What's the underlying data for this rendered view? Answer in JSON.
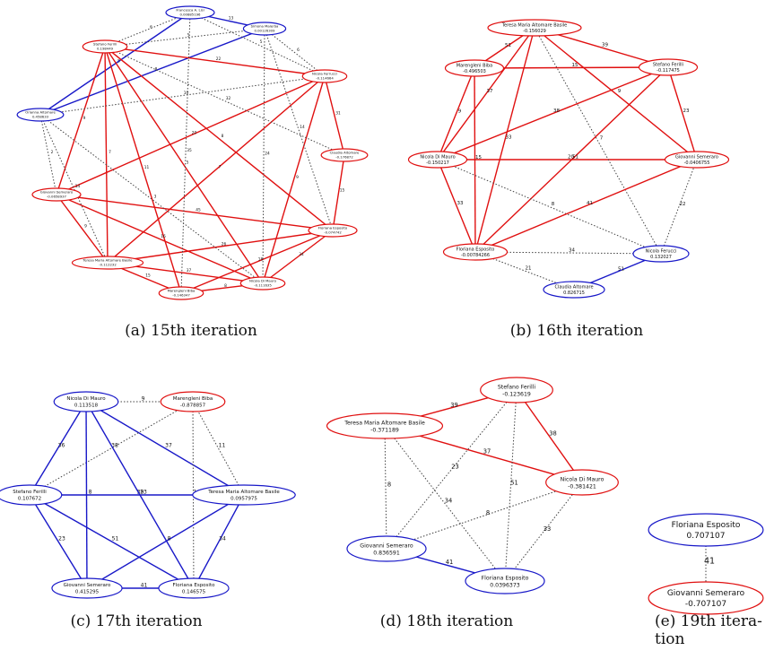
{
  "panels": [
    {
      "caption": "(a) 15th iteration",
      "nodes": [
        {
          "label": "Francesca A. Lisi",
          "value": "0.00885196",
          "color": "blue"
        },
        {
          "label": "Simona Malerba",
          "value": "0.00126309",
          "color": "blue"
        },
        {
          "label": "Stefano Ferilli",
          "value": "0.198449",
          "color": "red"
        },
        {
          "label": "Nicola Ferrucci",
          "value": "-0.114664",
          "color": "red"
        },
        {
          "label": "Orianna Altomare",
          "value": "0.458633",
          "color": "blue"
        },
        {
          "label": "Claudia Altomare",
          "value": "-0.176872",
          "color": "red"
        },
        {
          "label": "Giovanni Semeraro",
          "value": "-0.0658937",
          "color": "red"
        },
        {
          "label": "Floriana Esposito",
          "value": "-0.074742",
          "color": "red"
        },
        {
          "label": "Teresa Maria Altomare Basile",
          "value": "-0.112232",
          "color": "red"
        },
        {
          "label": "Marengleni Biba",
          "value": "-0.146347",
          "color": "red"
        },
        {
          "label": "Nicola Di Mauro",
          "value": "-0.111635",
          "color": "red"
        }
      ],
      "edges": [
        {
          "from": 0,
          "to": 1,
          "weight": "13",
          "kind": "blue"
        },
        {
          "from": 0,
          "to": 4,
          "weight": "5",
          "kind": "blue"
        },
        {
          "from": 1,
          "to": 4,
          "weight": "8",
          "kind": "blue"
        },
        {
          "from": 2,
          "to": 6,
          "weight": "9",
          "kind": "red"
        },
        {
          "from": 2,
          "to": 8,
          "weight": "7",
          "kind": "red"
        },
        {
          "from": 2,
          "to": 9,
          "weight": "11",
          "kind": "red"
        },
        {
          "from": 2,
          "to": 10,
          "weight": "5",
          "kind": "red"
        },
        {
          "from": 2,
          "to": 7,
          "weight": "8",
          "kind": "red"
        },
        {
          "from": 2,
          "to": 3,
          "weight": "22",
          "kind": "red"
        },
        {
          "from": 3,
          "to": 5,
          "weight": "31",
          "kind": "red"
        },
        {
          "from": 3,
          "to": 6,
          "weight": "20",
          "kind": "red"
        },
        {
          "from": 3,
          "to": 8,
          "weight": "7",
          "kind": "red"
        },
        {
          "from": 5,
          "to": 7,
          "weight": "15",
          "kind": "red"
        },
        {
          "from": 6,
          "to": 7,
          "weight": "45",
          "kind": "red"
        },
        {
          "from": 6,
          "to": 8,
          "weight": "9",
          "kind": "red"
        },
        {
          "from": 6,
          "to": 10,
          "weight": "16",
          "kind": "red"
        },
        {
          "from": 7,
          "to": 8,
          "weight": "26",
          "kind": "red"
        },
        {
          "from": 7,
          "to": 10,
          "weight": "34",
          "kind": "red"
        },
        {
          "from": 8,
          "to": 9,
          "weight": "15",
          "kind": "red"
        },
        {
          "from": 8,
          "to": 10,
          "weight": "37",
          "kind": "red"
        },
        {
          "from": 9,
          "to": 10,
          "weight": "8",
          "kind": "red"
        },
        {
          "from": 3,
          "to": 10,
          "weight": "9",
          "kind": "red"
        },
        {
          "from": 9,
          "to": 7,
          "weight": "18",
          "kind": "red"
        },
        {
          "from": 0,
          "to": 2,
          "weight": "6",
          "kind": "dotted"
        },
        {
          "from": 0,
          "to": 3,
          "weight": "5",
          "kind": "dotted"
        },
        {
          "from": 1,
          "to": 2,
          "weight": "5",
          "kind": "dotted"
        },
        {
          "from": 1,
          "to": 3,
          "weight": "6",
          "kind": "dotted"
        },
        {
          "from": 4,
          "to": 6,
          "weight": "2",
          "kind": "dotted"
        },
        {
          "from": 4,
          "to": 8,
          "weight": "14",
          "kind": "dotted"
        },
        {
          "from": 4,
          "to": 10,
          "weight": "3",
          "kind": "dotted"
        },
        {
          "from": 1,
          "to": 7,
          "weight": "14",
          "kind": "dotted"
        },
        {
          "from": 1,
          "to": 10,
          "weight": "24",
          "kind": "dotted"
        },
        {
          "from": 0,
          "to": 9,
          "weight": "35",
          "kind": "dotted"
        },
        {
          "from": 3,
          "to": 4,
          "weight": "10",
          "kind": "dotted"
        },
        {
          "from": 2,
          "to": 5,
          "weight": "32",
          "kind": "dotted"
        }
      ]
    },
    {
      "caption": "(b) 16th iteration",
      "nodes": [
        {
          "label": "Teresa Maria Altomare Basile",
          "value": "-0.156029",
          "color": "red"
        },
        {
          "label": "Marengleni Biba",
          "value": "-0.496503",
          "color": "red"
        },
        {
          "label": "Stefano Ferilli",
          "value": "-0.117475",
          "color": "red"
        },
        {
          "label": "Nicola Di Mauro",
          "value": "-0.150217",
          "color": "red"
        },
        {
          "label": "Giovanni Semeraro",
          "value": "-0.0406755",
          "color": "red"
        },
        {
          "label": "Floriana Esposito",
          "value": "-0.00784266",
          "color": "red"
        },
        {
          "label": "Nicola Ferucci",
          "value": "0.132027",
          "color": "blue"
        },
        {
          "label": "Claudia Altomare",
          "value": "0.826715",
          "color": "blue"
        }
      ],
      "edges": [
        {
          "from": 0,
          "to": 1,
          "weight": "51",
          "kind": "red"
        },
        {
          "from": 0,
          "to": 2,
          "weight": "39",
          "kind": "red"
        },
        {
          "from": 1,
          "to": 2,
          "weight": "15",
          "kind": "red"
        },
        {
          "from": 1,
          "to": 3,
          "weight": "9",
          "kind": "red"
        },
        {
          "from": 0,
          "to": 3,
          "weight": "37",
          "kind": "red"
        },
        {
          "from": 2,
          "to": 3,
          "weight": "38",
          "kind": "red"
        },
        {
          "from": 0,
          "to": 4,
          "weight": "9",
          "kind": "red"
        },
        {
          "from": 2,
          "to": 4,
          "weight": "23",
          "kind": "red"
        },
        {
          "from": 0,
          "to": 5,
          "weight": "33",
          "kind": "red"
        },
        {
          "from": 2,
          "to": 5,
          "weight": "51",
          "kind": "red"
        },
        {
          "from": 1,
          "to": 5,
          "weight": "15",
          "kind": "red"
        },
        {
          "from": 3,
          "to": 4,
          "weight": "20",
          "kind": "red"
        },
        {
          "from": 0,
          "to": 6,
          "weight": "7",
          "kind": "dotted"
        },
        {
          "from": 3,
          "to": 6,
          "weight": "8",
          "kind": "dotted"
        },
        {
          "from": 4,
          "to": 5,
          "weight": "41",
          "kind": "red"
        },
        {
          "from": 3,
          "to": 5,
          "weight": "33",
          "kind": "red"
        },
        {
          "from": 4,
          "to": 6,
          "weight": "22",
          "kind": "dotted"
        },
        {
          "from": 5,
          "to": 6,
          "weight": "34",
          "kind": "dotted"
        },
        {
          "from": 5,
          "to": 7,
          "weight": "21",
          "kind": "dotted"
        },
        {
          "from": 6,
          "to": 7,
          "weight": "51",
          "kind": "blue"
        }
      ]
    },
    {
      "caption": "(c) 17th iteration",
      "nodes": [
        {
          "label": "Nicola Di Mauro",
          "value": "0.113518",
          "color": "blue"
        },
        {
          "label": "Marengleni Biba",
          "value": "-0.878857",
          "color": "red"
        },
        {
          "label": "Stefano Ferilli",
          "value": "0.107672",
          "color": "blue"
        },
        {
          "label": "Teresa Maria Altomare Basile",
          "value": "0.0957975",
          "color": "blue"
        },
        {
          "label": "Giovanni Semeraro",
          "value": "0.415295",
          "color": "blue"
        },
        {
          "label": "Floriana Esposito",
          "value": "0.146575",
          "color": "blue"
        }
      ],
      "edges": [
        {
          "from": 0,
          "to": 1,
          "weight": "9",
          "kind": "dotted"
        },
        {
          "from": 0,
          "to": 2,
          "weight": "36",
          "kind": "blue"
        },
        {
          "from": 0,
          "to": 3,
          "weight": "37",
          "kind": "blue"
        },
        {
          "from": 1,
          "to": 2,
          "weight": "38",
          "kind": "dotted"
        },
        {
          "from": 1,
          "to": 3,
          "weight": "11",
          "kind": "dotted"
        },
        {
          "from": 2,
          "to": 3,
          "weight": "39",
          "kind": "blue"
        },
        {
          "from": 0,
          "to": 4,
          "weight": "8",
          "kind": "blue"
        },
        {
          "from": 0,
          "to": 5,
          "weight": "23",
          "kind": "blue"
        },
        {
          "from": 1,
          "to": 5,
          "weight": "14",
          "kind": "dotted"
        },
        {
          "from": 2,
          "to": 4,
          "weight": "23",
          "kind": "blue"
        },
        {
          "from": 2,
          "to": 5,
          "weight": "51",
          "kind": "blue"
        },
        {
          "from": 3,
          "to": 4,
          "weight": "8",
          "kind": "blue"
        },
        {
          "from": 3,
          "to": 5,
          "weight": "34",
          "kind": "blue"
        },
        {
          "from": 4,
          "to": 5,
          "weight": "41",
          "kind": "blue"
        }
      ]
    },
    {
      "caption": "(d) 18th iteration",
      "nodes": [
        {
          "label": "Stefano Ferilli",
          "value": "-0.123619",
          "color": "red"
        },
        {
          "label": "Teresa Maria Altomare Basile",
          "value": "-0.371189",
          "color": "red"
        },
        {
          "label": "Nicola Di Mauro",
          "value": "-0.381421",
          "color": "red"
        },
        {
          "label": "Giovanni Semeraro",
          "value": "0.836591",
          "color": "blue"
        },
        {
          "label": "Floriana Esposito",
          "value": "0.0396373",
          "color": "blue"
        }
      ],
      "edges": [
        {
          "from": 0,
          "to": 1,
          "weight": "39",
          "kind": "red"
        },
        {
          "from": 0,
          "to": 2,
          "weight": "38",
          "kind": "red"
        },
        {
          "from": 1,
          "to": 2,
          "weight": "37",
          "kind": "red"
        },
        {
          "from": 0,
          "to": 3,
          "weight": "23",
          "kind": "dotted"
        },
        {
          "from": 0,
          "to": 4,
          "weight": "51",
          "kind": "dotted"
        },
        {
          "from": 1,
          "to": 3,
          "weight": "8",
          "kind": "dotted"
        },
        {
          "from": 1,
          "to": 4,
          "weight": "34",
          "kind": "dotted"
        },
        {
          "from": 2,
          "to": 3,
          "weight": "8",
          "kind": "dotted"
        },
        {
          "from": 2,
          "to": 4,
          "weight": "33",
          "kind": "dotted"
        },
        {
          "from": 3,
          "to": 4,
          "weight": "41",
          "kind": "blue"
        }
      ]
    },
    {
      "caption": "(e) 19th itera­tion",
      "nodes": [
        {
          "label": "Floriana Esposito",
          "value": "0.707107",
          "color": "blue"
        },
        {
          "label": "Giovanni Semeraro",
          "value": "-0.707107",
          "color": "red"
        }
      ],
      "edges": [
        {
          "from": 0,
          "to": 1,
          "weight": "41",
          "kind": "dotted"
        }
      ]
    }
  ]
}
